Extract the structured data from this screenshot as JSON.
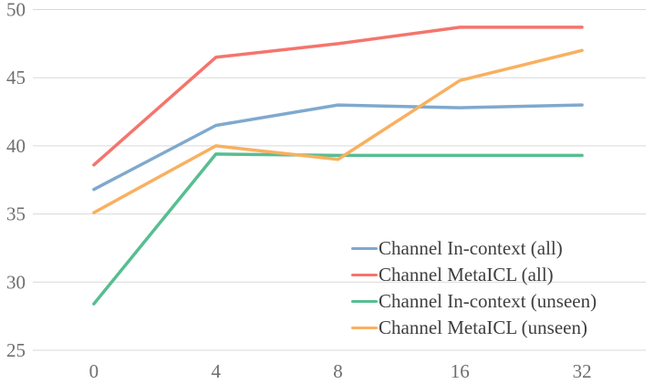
{
  "chart_data": {
    "type": "line",
    "title": "",
    "xlabel": "",
    "ylabel": "",
    "x_axis_type": "categorical",
    "categories": [
      "0",
      "4",
      "8",
      "16",
      "32"
    ],
    "series": [
      {
        "name": "Channel In-context (all)",
        "color": "#7FA9CE",
        "values": [
          36.8,
          41.5,
          43.0,
          42.8,
          43.0
        ]
      },
      {
        "name": "Channel MetaICL (all)",
        "color": "#F4756C",
        "values": [
          38.6,
          46.5,
          47.5,
          48.7,
          48.7
        ]
      },
      {
        "name": "Channel In-context (unseen)",
        "color": "#57BE92",
        "values": [
          28.4,
          39.4,
          39.3,
          39.3,
          39.3
        ]
      },
      {
        "name": "Channel MetaICL (unseen)",
        "color": "#F9B05F",
        "values": [
          35.1,
          40.0,
          39.0,
          44.8,
          47.0
        ]
      }
    ],
    "ylim": [
      25,
      50
    ],
    "yticks": [
      25,
      30,
      35,
      40,
      45,
      50
    ],
    "grid": true,
    "legend_position": "inside-lower-right",
    "grid_color": "#D9D9D9",
    "tick_text_color": "#6E6E6E",
    "legend_text_color": "#3F3F3F"
  }
}
